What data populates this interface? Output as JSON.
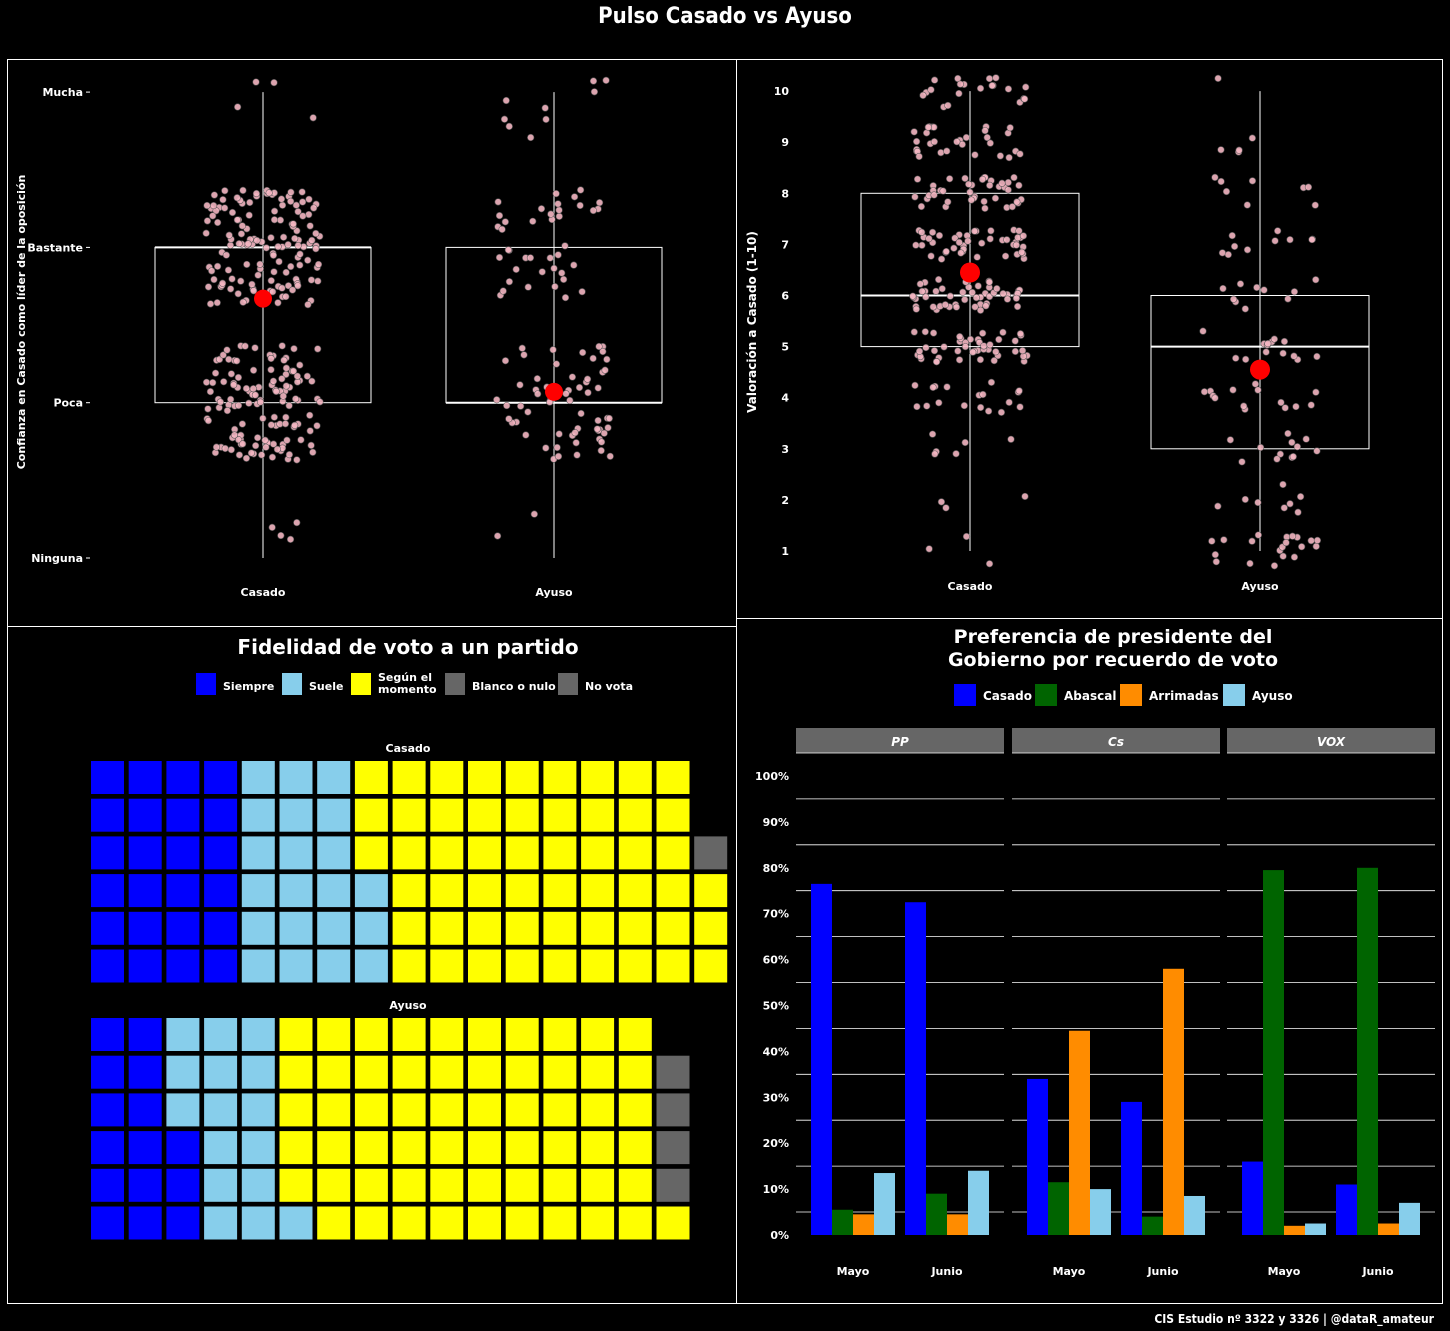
{
  "title": "Pulso Casado vs Ayuso",
  "caption": "CIS Estudio nº 3322 y 3326 | @dataR_amateur",
  "colors": {
    "background": "#000000",
    "point": "#f4b6c2",
    "mean": "#ff0000",
    "siempre": "#0000ff",
    "suele": "#87ceeb",
    "segun": "#ffff00",
    "blanco": "#666666",
    "novota": "#666666",
    "casado": "#0000ff",
    "abascal": "#006400",
    "arrimadas": "#ff8c00",
    "ayuso": "#87ceeb",
    "strip": "#666666"
  },
  "chart_data": [
    {
      "type": "box",
      "ylabel": "Confianza en Casado como líder de la oposición",
      "y_levels": [
        "Ninguna",
        "Poca",
        "Bastante",
        "Mucha"
      ],
      "categories": [
        "Casado",
        "Ayuso"
      ],
      "boxes": [
        {
          "q1": 2,
          "median": 3,
          "q3": 3,
          "whisker_low": 1,
          "whisker_high": 4,
          "mean": 2.67
        },
        {
          "q1": 2,
          "median": 2,
          "q3": 3,
          "whisker_low": 1,
          "whisker_high": 4,
          "mean": 2.07
        }
      ]
    },
    {
      "type": "box",
      "ylabel": "Valoración a Casado (1-10)",
      "yticks": [
        1,
        2,
        3,
        4,
        5,
        6,
        7,
        8,
        9,
        10
      ],
      "categories": [
        "Casado",
        "Ayuso"
      ],
      "boxes": [
        {
          "q1": 5,
          "median": 6,
          "q3": 8,
          "whisker_low": 1,
          "whisker_high": 10,
          "mean": 6.45
        },
        {
          "q1": 3,
          "median": 5,
          "q3": 6,
          "whisker_low": 1,
          "whisker_high": 10,
          "mean": 4.55
        }
      ]
    },
    {
      "type": "waffle",
      "title": "Fidelidad de voto a un partido",
      "legend": [
        "Siempre",
        "Suele",
        "Según el\nmomento",
        "Blanco o nulo",
        "No vota"
      ],
      "groups": [
        {
          "name": "Casado",
          "counts": {
            "Siempre": 24,
            "Suele": 21,
            "Según el momento": 54,
            "Blanco o nulo": 0,
            "No vota": 1
          }
        },
        {
          "name": "Ayuso",
          "counts": {
            "Siempre": 15,
            "Suele": 16,
            "Según el momento": 60,
            "Blanco o nulo": 0,
            "No vota": 4
          }
        }
      ]
    },
    {
      "type": "bar",
      "title": "Preferencia de presidente del\nGobierno por recuerdo de voto",
      "legend": [
        "Casado",
        "Abascal",
        "Arrimadas",
        "Ayuso"
      ],
      "ylim": [
        0,
        100
      ],
      "yticks": [
        "0%",
        "10%",
        "20%",
        "30%",
        "40%",
        "50%",
        "60%",
        "70%",
        "80%",
        "90%",
        "100%"
      ],
      "facets": [
        {
          "name": "PP",
          "categories": [
            "Mayo",
            "Junio"
          ],
          "series": [
            {
              "name": "Casado",
              "values": [
                76.5,
                72.5
              ]
            },
            {
              "name": "Abascal",
              "values": [
                5.5,
                9
              ]
            },
            {
              "name": "Arrimadas",
              "values": [
                4.5,
                4.5
              ]
            },
            {
              "name": "Ayuso",
              "values": [
                13.5,
                14
              ]
            }
          ]
        },
        {
          "name": "Cs",
          "categories": [
            "Mayo",
            "Junio"
          ],
          "series": [
            {
              "name": "Casado",
              "values": [
                34,
                29
              ]
            },
            {
              "name": "Abascal",
              "values": [
                11.5,
                4
              ]
            },
            {
              "name": "Arrimadas",
              "values": [
                44.5,
                58
              ]
            },
            {
              "name": "Ayuso",
              "values": [
                10,
                8.5
              ]
            }
          ]
        },
        {
          "name": "VOX",
          "categories": [
            "Mayo",
            "Junio"
          ],
          "series": [
            {
              "name": "Casado",
              "values": [
                16,
                11
              ]
            },
            {
              "name": "Abascal",
              "values": [
                79.5,
                80
              ]
            },
            {
              "name": "Arrimadas",
              "values": [
                2,
                2.5
              ]
            },
            {
              "name": "Ayuso",
              "values": [
                2.5,
                7
              ]
            }
          ]
        }
      ]
    }
  ]
}
